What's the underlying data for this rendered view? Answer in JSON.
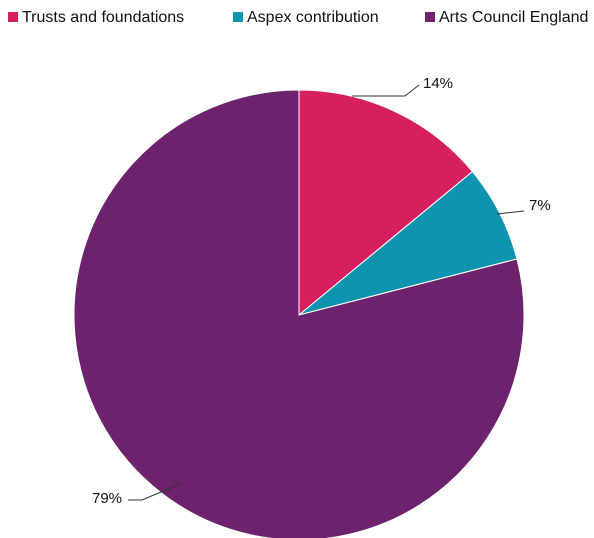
{
  "chart_data": {
    "type": "pie",
    "series": [
      {
        "name": "Trusts and foundations",
        "value": 14,
        "label": "14%",
        "color": "#D61F5F"
      },
      {
        "name": "Aspex contribution",
        "value": 7,
        "label": "7%",
        "color": "#0E94AE"
      },
      {
        "name": "Arts Council England",
        "value": 79,
        "label": "79%",
        "color": "#6C226C"
      }
    ],
    "legend_position": "top",
    "start_angle": "12 o'clock",
    "direction": "clockwise",
    "units": "%"
  }
}
